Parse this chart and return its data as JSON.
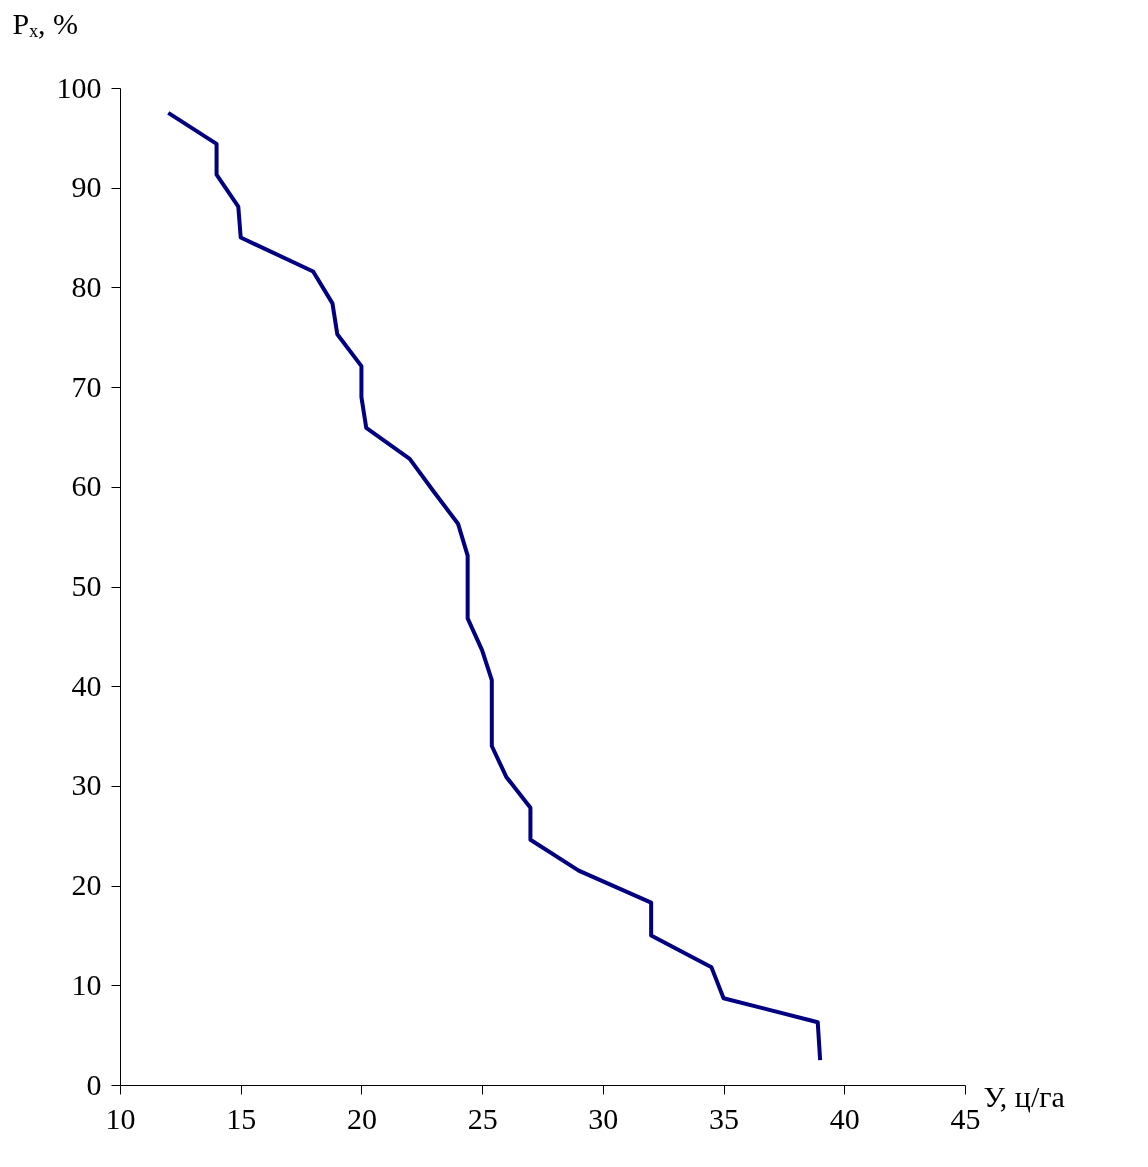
{
  "chart_data": {
    "type": "line",
    "xlabel": "У, ц/га",
    "ylabel": "Pₓ, %",
    "series": [
      {
        "color": "#000080",
        "x": [
          12.0,
          14.0,
          14.0,
          14.9,
          15.0,
          18.0,
          18.8,
          19.0,
          20.0,
          20.0,
          20.2,
          22.0,
          23.0,
          24.0,
          24.4,
          24.4,
          25.0,
          25.4,
          25.4,
          26.0,
          27.0,
          27.0,
          29.0,
          32.0,
          32.0,
          34.5,
          35.0,
          38.9,
          39.0
        ],
        "values": [
          97.5,
          94.4,
          91.3,
          88.1,
          85.0,
          81.6,
          78.4,
          75.3,
          72.1,
          69.0,
          65.9,
          62.8,
          59.5,
          56.3,
          53.1,
          46.8,
          43.6,
          40.6,
          34.0,
          30.9,
          27.8,
          24.6,
          21.5,
          18.3,
          15.0,
          11.8,
          8.7,
          6.3,
          2.5
        ]
      }
    ],
    "xlim": [
      10,
      45
    ],
    "xticks": [
      10,
      15,
      20,
      25,
      30,
      35,
      40,
      45
    ],
    "ylim": [
      0,
      100
    ],
    "yticks": [
      0,
      10,
      20,
      30,
      40,
      50,
      60,
      70,
      80,
      90,
      100
    ],
    "grid": false,
    "legend": false,
    "line_style": "solid",
    "marker": "none"
  }
}
